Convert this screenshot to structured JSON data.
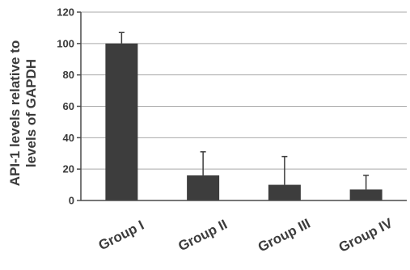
{
  "chart_data": {
    "type": "bar",
    "title": "",
    "xlabel": "",
    "ylabel_lines": [
      "API-1 levels relative to",
      "levels of GAPDH"
    ],
    "categories": [
      "Group I",
      "Group II",
      "Group III",
      "Group IV"
    ],
    "values": [
      100,
      16,
      10,
      7
    ],
    "error_upper": [
      7,
      15,
      18,
      9
    ],
    "ylim": [
      0,
      120
    ],
    "yticks": [
      0,
      20,
      40,
      60,
      80,
      100,
      120
    ],
    "grid": true,
    "bar_color": "#3d3d3d",
    "grid_color": "#a9a9a9",
    "axis_color": "#4a4a4a"
  }
}
